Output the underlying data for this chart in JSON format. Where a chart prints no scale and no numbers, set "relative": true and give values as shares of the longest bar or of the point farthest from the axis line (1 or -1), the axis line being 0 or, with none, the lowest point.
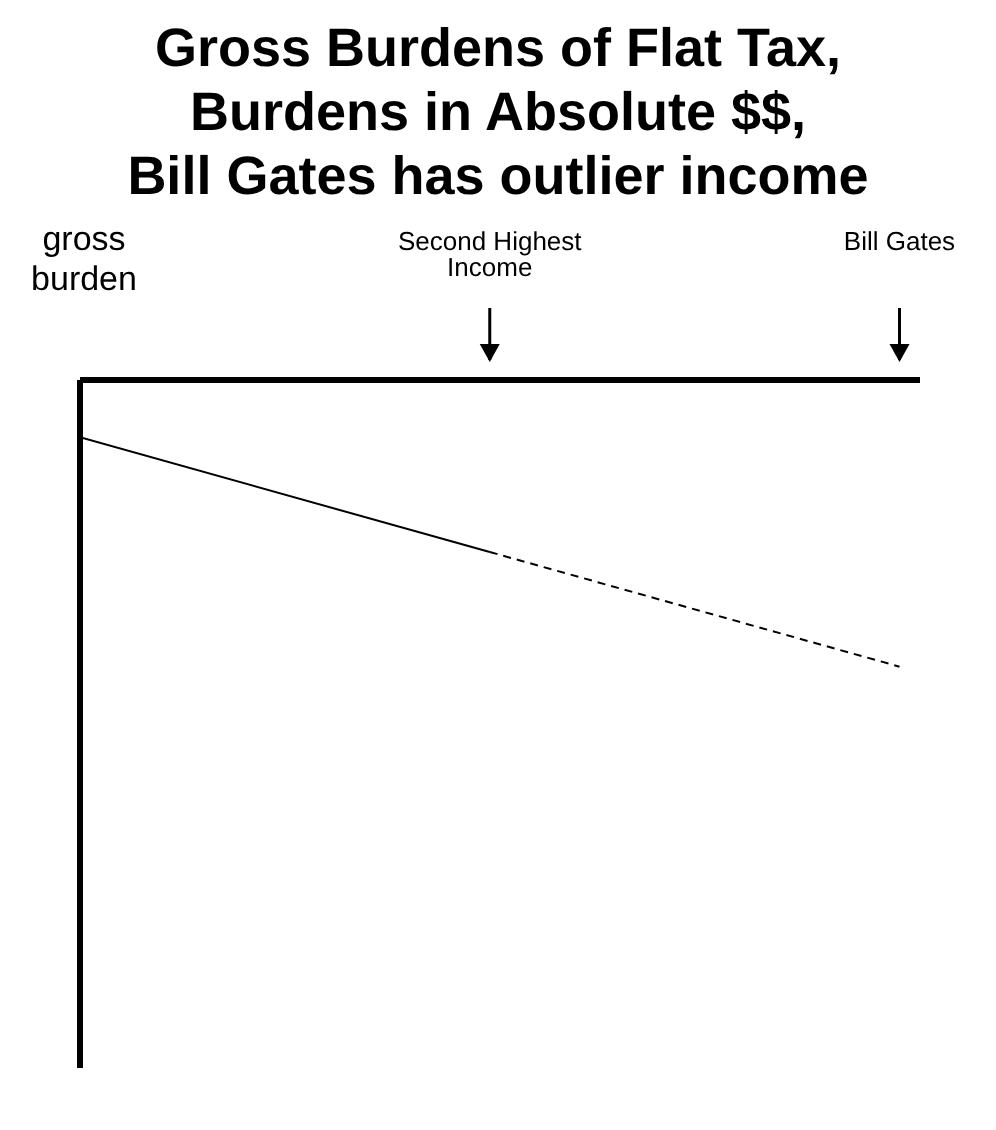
{
  "chart_data": {
    "type": "line",
    "title": "Gross Burdens of Flat Tax,\nBurdens in Absolute $$,\nBill Gates has outlier income",
    "ylabel": "gross burden",
    "relative": true,
    "categories": [
      null,
      "Second Highest Income",
      "Bill Gates"
    ],
    "series": [
      {
        "color": "#000000",
        "line_style": "solid",
        "values": [
          -0.2,
          -0.6,
          null
        ]
      },
      {
        "color": "#000000",
        "line_style": "dashed",
        "values": [
          null,
          -0.6,
          -1
        ]
      }
    ],
    "legend": false,
    "grid": false,
    "marker": "none"
  }
}
